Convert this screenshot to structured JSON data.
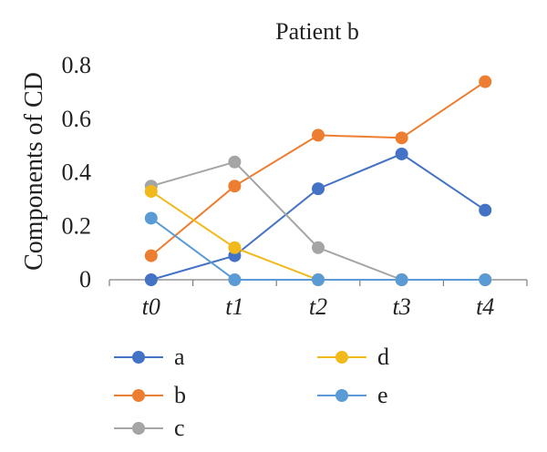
{
  "chart_data": {
    "type": "line",
    "title": "Patient b",
    "ylabel": "Components of CD",
    "xlabel": "",
    "ylim": [
      0,
      0.8
    ],
    "y_ticks": [
      "0",
      "0.2",
      "0.4",
      "0.6",
      "0.8"
    ],
    "categories": [
      "t0",
      "t1",
      "t2",
      "t3",
      "t4"
    ],
    "grid": false,
    "legend_position": "bottom",
    "series": [
      {
        "name": "a",
        "color": "#4472C4",
        "values": [
          0.0,
          0.09,
          0.34,
          0.47,
          0.26
        ]
      },
      {
        "name": "b",
        "color": "#ED7D31",
        "values": [
          0.09,
          0.35,
          0.54,
          0.53,
          0.74
        ]
      },
      {
        "name": "c",
        "color": "#A5A5A5",
        "values": [
          0.35,
          0.44,
          0.12,
          0.0,
          0.0
        ]
      },
      {
        "name": "d",
        "color": "#F2B91C",
        "values": [
          0.33,
          0.12,
          0.0,
          0.0,
          0.0
        ]
      },
      {
        "name": "e",
        "color": "#5B9BD5",
        "values": [
          0.23,
          0.0,
          0.0,
          0.0,
          0.0
        ]
      }
    ]
  }
}
